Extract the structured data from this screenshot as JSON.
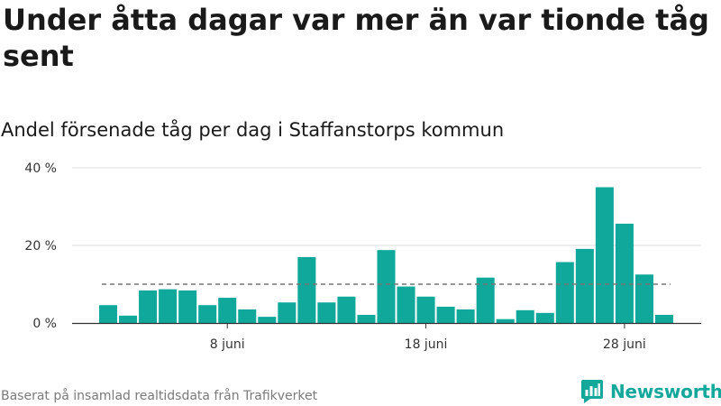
{
  "title": "Under åtta dagar var mer än var tionde tåg sent",
  "subtitle": "Andel försenade tåg per dag i Staffanstorps kommun",
  "footer": "Baserat på insamlad realtidsdata från Trafikverket",
  "brand": {
    "name": "Newsworthy",
    "icon": "newsworthy-logo-icon"
  },
  "colors": {
    "bar": "#0fa89a",
    "reference_line": "#777777",
    "grid": "#dddddd",
    "axis": "#333333",
    "brand": "#14a89c"
  },
  "chart_data": {
    "type": "bar",
    "categories": [
      "2 juni",
      "3 juni",
      "4 juni",
      "5 juni",
      "6 juni",
      "7 juni",
      "8 juni",
      "9 juni",
      "10 juni",
      "11 juni",
      "12 juni",
      "13 juni",
      "14 juni",
      "15 juni",
      "16 juni",
      "17 juni",
      "18 juni",
      "19 juni",
      "20 juni",
      "21 juni",
      "22 juni",
      "23 juni",
      "24 juni",
      "25 juni",
      "26 juni",
      "27 juni",
      "28 juni",
      "29 juni",
      "30 juni"
    ],
    "values": [
      4.6,
      1.9,
      8.4,
      8.7,
      8.4,
      4.6,
      6.5,
      3.5,
      1.6,
      5.3,
      17.0,
      5.3,
      6.8,
      2.1,
      18.8,
      9.4,
      6.8,
      4.2,
      3.5,
      11.7,
      1.0,
      3.3,
      2.6,
      15.7,
      19.1,
      35.0,
      25.6,
      12.5,
      2.1
    ],
    "reference_line": 10,
    "ylim": [
      0,
      40
    ],
    "yticks": [
      0,
      20,
      40
    ],
    "ytick_labels": [
      "0 %",
      "20 %",
      "40 %"
    ],
    "xticks": [
      {
        "category": "8 juni",
        "label": "8 juni"
      },
      {
        "category": "18 juni",
        "label": "18 juni"
      },
      {
        "category": "28 juni",
        "label": "28 juni"
      }
    ],
    "xlabel": "",
    "ylabel": "",
    "grid": true,
    "legend": "none"
  }
}
